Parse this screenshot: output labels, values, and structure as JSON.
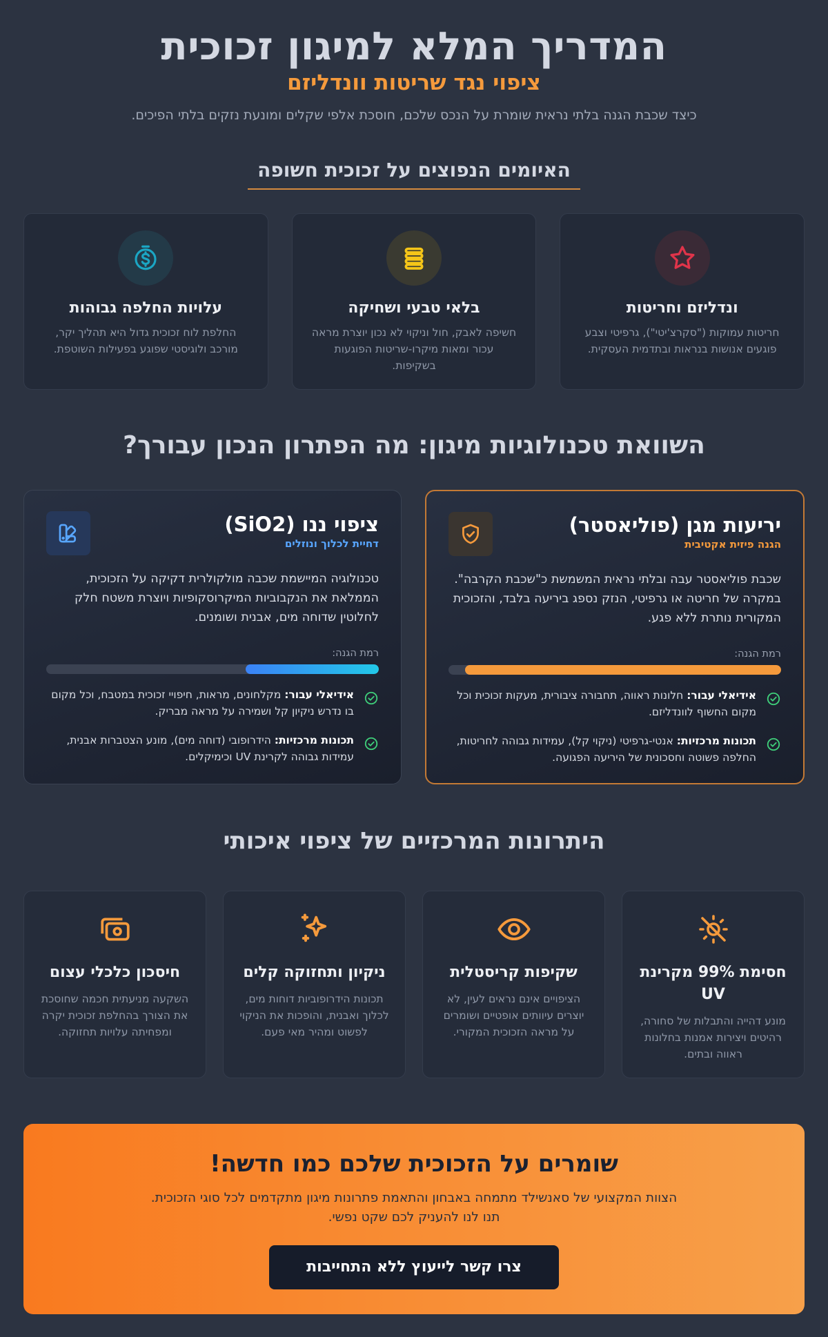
{
  "header": {
    "title": "המדריך המלא למיגון זכוכית",
    "subtitle": "ציפוי נגד שריטות וונדליזם",
    "intro": "כיצד שכבת הגנה בלתי נראית שומרת על הנכס שלכם, חוסכת אלפי שקלים ומונעת נזקים בלתי הפיכים."
  },
  "threats": {
    "title": "האיומים הנפוצים על זכוכית חשופה",
    "items": [
      {
        "icon": "star-icon",
        "color": "#e0344a",
        "title": "ונדליזם וחריטות",
        "text": "חריטות עמוקות (\"סקרצ'יטי\"), גרפיטי וצבע פוגעים אנושות בנראות ובתדמית העסקית."
      },
      {
        "icon": "layers-icon",
        "color": "#f5c518",
        "title": "בלאי טבעי ושחיקה",
        "text": "חשיפה לאבק, חול וניקוי לא נכון יוצרת מראה עכור ומאות מיקרו-שריטות הפוגעות בשקיפות."
      },
      {
        "icon": "dollar-icon",
        "color": "#1ba6c4",
        "title": "עלויות החלפה גבוהות",
        "text": "החלפת לוח זכוכית גדול היא תהליך יקר, מורכב ולוגיסטי שפוגע בפעילות השוטפת."
      }
    ]
  },
  "compare": {
    "title": "השוואת טכנולוגיות מיגון: מה הפתרון הנכון עבורך?",
    "cards": [
      {
        "icon": "shield-check-icon",
        "title": "יריעות מגן (פוליאסטר)",
        "subtitle": "הגנה פיזית אקטיבית",
        "accent": "#f59a3c",
        "desc": "שכבת פוליאסטר עבה ובלתי נראית המשמשת כ\"שכבת הקרבה\". במקרה של חריטה או גרפיטי, הנזק נספג ביריעה בלבד, והזכוכית המקורית נותרת ללא פגע.",
        "protection_label": "רמת הגנה:",
        "protection": 0.95,
        "features": [
          {
            "label": "אידיאלי עבור:",
            "text": " חלונות ראווה, תחבורה ציבורית, מעקות זכוכית וכל מקום החשוף לוונדליזם."
          },
          {
            "label": "תכונות מרכזיות:",
            "text": " אנטי-גרפיטי (ניקוי קל), עמידות גבוהה לחריטות, החלפה פשוטה וחסכונית של היריעה הפגועה."
          }
        ]
      },
      {
        "icon": "palette-icon",
        "title": "ציפוי ננו (SiO2)",
        "subtitle": "דחיית לכלוך ונוזלים",
        "accent": "#58a6ff",
        "desc": "טכנולוגיה המיישמת שכבה מולקולרית דקיקה על הזכוכית, הממלאת את הנקבוביות המיקרוסקופיות ויוצרת משטח חלק לחלוטין שדוחה מים, אבנית ושומנים.",
        "protection_label": "רמת הגנה:",
        "protection": 0.4,
        "features": [
          {
            "label": "אידיאלי עבור:",
            "text": " מקלחונים, מראות, חיפויי זכוכית במטבח, וכל מקום בו נדרש ניקיון קל ושמירה על מראה מבריק."
          },
          {
            "label": "תכונות מרכזיות:",
            "text": " הידרופובי (דוחה מים), מונע הצטברות אבנית, עמידות גבוהה לקרינת UV וכימיקלים."
          }
        ]
      }
    ]
  },
  "advantages": {
    "title": "היתרונות המרכזיים של ציפוי איכותי",
    "items": [
      {
        "icon": "sun-off-icon",
        "title": "חסימת 99% מקרינת UV",
        "text": "מונע דהייה והתבלות של סחורה, רהיטים ויצירות אמנות בחלונות ראווה ובתים."
      },
      {
        "icon": "eye-icon",
        "title": "שקיפות קריסטלית",
        "text": "הציפויים אינם נראים לעין, לא יוצרים עיוותים אופטיים ושומרים על מראה הזכוכית המקורי."
      },
      {
        "icon": "sparkles-icon",
        "title": "ניקיון ותחזוקה קלים",
        "text": "תכונות הידרופוביות דוחות מים, לכלוך ואבנית, והופכות את הניקוי לפשוט ומהיר מאי פעם."
      },
      {
        "icon": "money-icon",
        "title": "חיסכון כלכלי עצום",
        "text": "השקעה מניעתית חכמה שחוסכת את הצורך בהחלפת זכוכית יקרה ומפחיתה עלויות תחזוקה."
      }
    ],
    "accent": "#f59a3c"
  },
  "cta": {
    "title": "שומרים על הזכוכית שלכם כמו חדשה!",
    "text": "הצוות המקצועי של סאנשילד מתמחה באבחון והתאמת פתרונות מיגון מתקדמים לכל סוגי הזכוכית. תנו לנו להעניק לכם שקט נפשי.",
    "button": "צרו קשר לייעוץ ללא התחייבות"
  }
}
